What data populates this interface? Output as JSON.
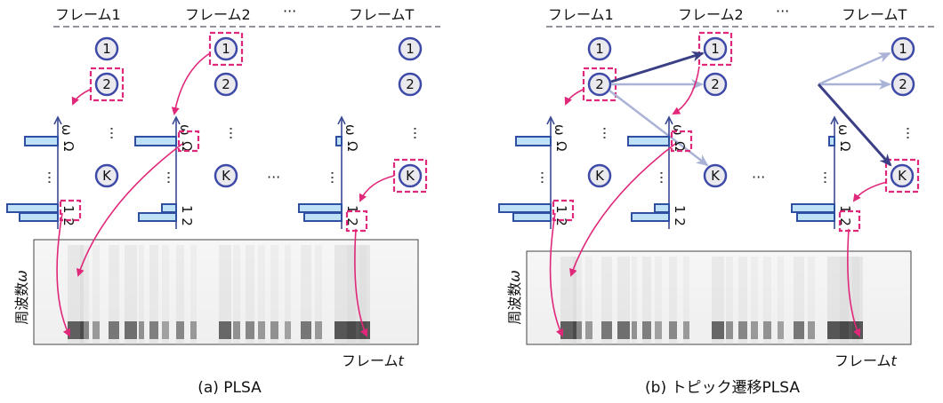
{
  "frames": {
    "frame1": "フレーム1",
    "frame2": "フレーム2",
    "frameT": "フレームT",
    "ellipsis": "···"
  },
  "nodes": {
    "n1": "1",
    "n2": "2",
    "nK": "K"
  },
  "axis": {
    "omega": "ω",
    "cap_omega": "Ω",
    "tick12": "1 2",
    "vdots": "⋮",
    "hdots": "···"
  },
  "spectrogram": {
    "ylabel": "周波数",
    "ylabel_sym": "ω",
    "xlabel": "フレーム",
    "xlabel_sym": "t"
  },
  "captions": {
    "a": "(a) PLSA",
    "b": "(b) トピック遷移PLSA"
  },
  "colors": {
    "highlight": "#e0287a",
    "node_stroke": "#3e4aa8",
    "strong_arrow": "#3a3f86",
    "light_arrow": "#aab3d6",
    "bar_fill": "#bfe1f7"
  }
}
